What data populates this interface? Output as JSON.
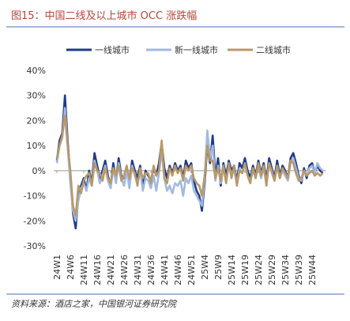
{
  "chart_data": {
    "type": "line",
    "title": "图15：中国二线及以上城市 OCC 涨跌幅",
    "source": "资料来源：酒店之家，中国银河证券研究院",
    "categories": [
      "24W1",
      null,
      null,
      null,
      null,
      "24W6",
      null,
      null,
      null,
      null,
      "24W11",
      null,
      null,
      null,
      null,
      "24W16",
      null,
      null,
      null,
      null,
      "24W21",
      null,
      null,
      null,
      null,
      "24W26",
      null,
      null,
      null,
      null,
      "24W31",
      null,
      null,
      null,
      null,
      "24W36",
      null,
      null,
      null,
      null,
      "24W41",
      null,
      null,
      null,
      null,
      "24W46",
      null,
      null,
      null,
      null,
      "24W51",
      null,
      null,
      null,
      null,
      "25W4",
      null,
      null,
      null,
      null,
      "25W9",
      null,
      null,
      null,
      null,
      "25W14",
      null,
      null,
      null,
      null,
      "25W19",
      null,
      null,
      null,
      null,
      "25W24",
      null,
      null,
      null,
      null,
      "25W29",
      null,
      null,
      null,
      null,
      "25W34",
      null,
      null,
      null,
      null,
      "25W39",
      null,
      null,
      null,
      null,
      "25W44",
      null,
      null,
      null,
      null
    ],
    "series": [
      {
        "name": "一线城市",
        "color": "#1f3c88",
        "values": [
          4,
          12,
          15,
          30,
          12,
          -2,
          -17,
          -23,
          -10,
          -6,
          -3,
          -8,
          0,
          -5,
          7,
          2,
          -3,
          0,
          4,
          -2,
          -6,
          3,
          -4,
          5,
          -2,
          -3,
          1,
          -5,
          4,
          0,
          -3,
          2,
          -6,
          0,
          -2,
          -4,
          1,
          -2,
          3,
          11,
          1,
          -3,
          2,
          -1,
          3,
          0,
          2,
          -3,
          4,
          1,
          3,
          -4,
          -8,
          -10,
          -16,
          -5,
          10,
          3,
          14,
          -2,
          5,
          -6,
          3,
          -2,
          4,
          0,
          2,
          -4,
          3,
          1,
          5,
          0,
          -3,
          2,
          -2,
          4,
          -1,
          3,
          -4,
          5,
          1,
          -3,
          4,
          -2,
          2,
          0,
          -3,
          5,
          7,
          3,
          -2,
          -5,
          1,
          -3,
          2,
          3,
          -1,
          2,
          0,
          -1
        ]
      },
      {
        "name": "新一线城市",
        "color": "#a3b8e0",
        "values": [
          3,
          10,
          13,
          25,
          10,
          -5,
          -16,
          -20,
          -12,
          -7,
          -5,
          -8,
          -3,
          -6,
          4,
          0,
          -5,
          -2,
          2,
          -4,
          -7,
          1,
          -5,
          3,
          -3,
          -6,
          0,
          -7,
          2,
          -2,
          -5,
          0,
          -8,
          -3,
          -4,
          -7,
          -2,
          -8,
          -1,
          8,
          -3,
          -8,
          -6,
          -9,
          -5,
          -6,
          -4,
          -10,
          -3,
          -5,
          -2,
          -8,
          -10,
          -12,
          -14,
          -3,
          16,
          5,
          10,
          -4,
          2,
          -5,
          1,
          -4,
          2,
          -1,
          0,
          -5,
          1,
          -1,
          3,
          -2,
          -4,
          0,
          -3,
          2,
          -3,
          1,
          -5,
          3,
          -1,
          -4,
          2,
          -3,
          0,
          -2,
          -4,
          3,
          5,
          1,
          -3,
          -4,
          0,
          -2,
          1,
          2,
          -1,
          3,
          1,
          0
        ]
      },
      {
        "name": "二线城市",
        "color": "#b89968",
        "values": [
          5,
          10,
          14,
          22,
          10,
          0,
          -14,
          -18,
          -6,
          -9,
          -4,
          -2,
          -1,
          -6,
          3,
          0,
          -1,
          -4,
          1,
          -3,
          -5,
          1,
          -2,
          2,
          -4,
          -2,
          2,
          -3,
          1,
          -1,
          -6,
          1,
          -3,
          -1,
          -1,
          -5,
          2,
          -2,
          0,
          12,
          -3,
          -5,
          1,
          -2,
          2,
          -1,
          1,
          -4,
          2,
          0,
          2,
          -3,
          -5,
          -6,
          -10,
          -2,
          10,
          4,
          4,
          -3,
          1,
          -4,
          2,
          -5,
          3,
          -3,
          2,
          -6,
          0,
          -1,
          3,
          -2,
          -5,
          1,
          -3,
          3,
          -2,
          2,
          -6,
          3,
          0,
          -4,
          2,
          -3,
          1,
          -1,
          -3,
          4,
          3,
          -1,
          -4,
          -3,
          0,
          -2,
          -1,
          0,
          -2,
          -1,
          -2,
          -1
        ]
      }
    ],
    "ylim": [
      -30,
      40
    ],
    "yticks": [
      {
        "value": -30,
        "label": "-30%"
      },
      {
        "value": -20,
        "label": "-20%"
      },
      {
        "value": -10,
        "label": "-10%"
      },
      {
        "value": 0,
        "label": "0%"
      },
      {
        "value": 10,
        "label": "10%"
      },
      {
        "value": 20,
        "label": "20%"
      },
      {
        "value": 30,
        "label": "30%"
      },
      {
        "value": 40,
        "label": "40%"
      }
    ],
    "legend": "top"
  }
}
